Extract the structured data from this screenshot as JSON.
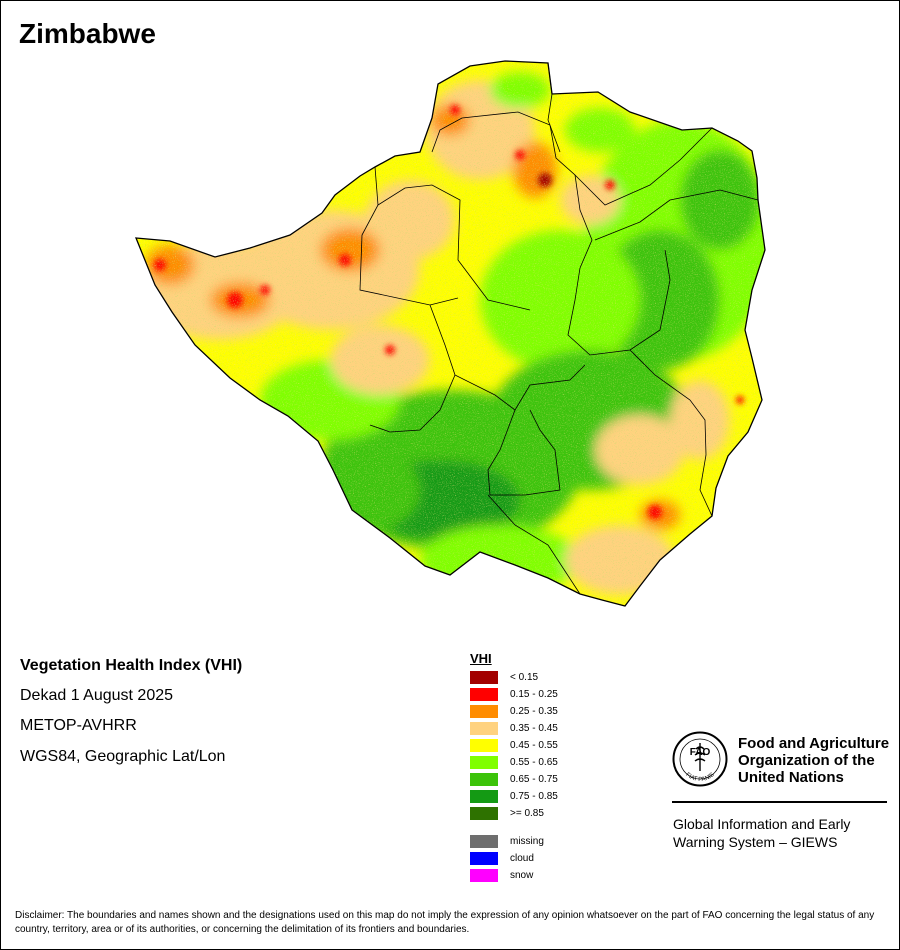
{
  "map": {
    "title": "Zimbabwe",
    "product_name": "Vegetation Health Index (VHI)",
    "period": "Dekad 1 August 2025",
    "sensor": "METOP-AVHRR",
    "projection": "WGS84, Geographic Lat/Lon"
  },
  "legend": {
    "title": "VHI",
    "classes": [
      {
        "label": "< 0.15",
        "color": "#A30000"
      },
      {
        "label": "0.15 - 0.25",
        "color": "#FF0000"
      },
      {
        "label": "0.25 - 0.35",
        "color": "#FF8C00"
      },
      {
        "label": "0.35 - 0.45",
        "color": "#FFD27F"
      },
      {
        "label": "0.45 - 0.55",
        "color": "#FFFF00"
      },
      {
        "label": "0.55 - 0.65",
        "color": "#80FF00"
      },
      {
        "label": "0.65 - 0.75",
        "color": "#3CC30A"
      },
      {
        "label": "0.75 - 0.85",
        "color": "#149A14"
      },
      {
        "label": ">= 0.85",
        "color": "#2E7200"
      }
    ],
    "extra": [
      {
        "label": "missing",
        "color": "#6E6E6E"
      },
      {
        "label": "cloud",
        "color": "#0000FF"
      },
      {
        "label": "snow",
        "color": "#FF00FF"
      }
    ]
  },
  "organization": {
    "name_line1": "Food and Agriculture",
    "name_line2": "Organization of the",
    "name_line3": "United Nations",
    "emblem_text": "FAO",
    "motto": "FIAT PANIS",
    "system_line1": "Global Information and Early",
    "system_line2": "Warning System – GIEWS"
  },
  "disclaimer": "Disclaimer: The boundaries and names shown and the designations used on this map do not imply the expression of any opinion whatsoever on the part of FAO concerning the legal status of any country, territory, area or of its authorities, or concerning the delimitation of its frontiers and boundaries."
}
